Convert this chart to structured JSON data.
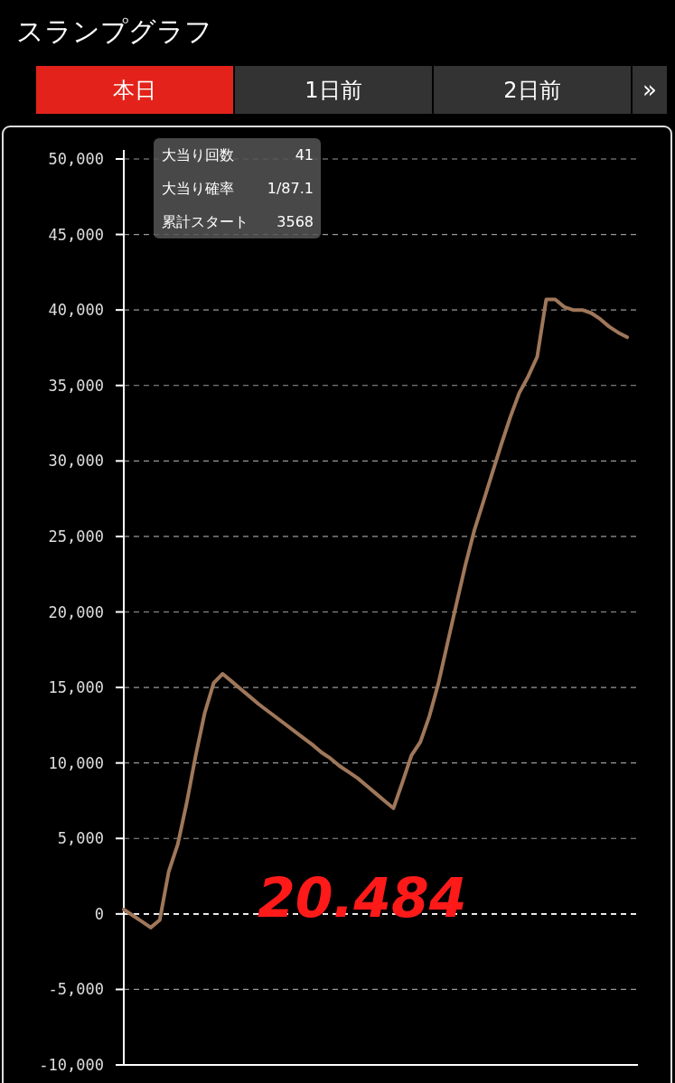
{
  "chart_data": {
    "type": "line",
    "title": "スランプグラフ",
    "categories": [
      null,
      null,
      null,
      null,
      null,
      null,
      null,
      null,
      null,
      null,
      null,
      null,
      null,
      null,
      null,
      null,
      null,
      null,
      null,
      null,
      null,
      null,
      null,
      null,
      null,
      null,
      null,
      null,
      null,
      null,
      null,
      null,
      null,
      null,
      null,
      null,
      null,
      null,
      null,
      null,
      null,
      null,
      null,
      null,
      null,
      null,
      null,
      null,
      null,
      null,
      null,
      null,
      null,
      null,
      null,
      null,
      null
    ],
    "series": [
      {
        "color": "#a0775a",
        "values": [
          300,
          -100,
          -500,
          -900,
          -400,
          2800,
          4600,
          7350,
          10500,
          13300,
          15300,
          15900,
          15400,
          14900,
          14400,
          13900,
          13450,
          13000,
          12550,
          12100,
          11650,
          11200,
          10700,
          10300,
          9800,
          9400,
          9000,
          8500,
          8000,
          7500,
          7000,
          8700,
          10500,
          11400,
          13100,
          15250,
          17900,
          20500,
          23100,
          25400,
          27300,
          29200,
          31100,
          32900,
          34500,
          35600,
          36900,
          40700,
          40700,
          40200,
          40000,
          40000,
          39800,
          39400,
          38900,
          38500,
          38200
        ]
      }
    ],
    "ylim": [
      -10000,
      50000
    ],
    "yticks": [
      {
        "value": -10000,
        "label": "-10,000"
      },
      {
        "value": -5000,
        "label": "-5,000"
      },
      {
        "value": 0,
        "label": "0"
      },
      {
        "value": 5000,
        "label": "5,000"
      },
      {
        "value": 10000,
        "label": "10,000"
      },
      {
        "value": 15000,
        "label": "15,000"
      },
      {
        "value": 20000,
        "label": "20,000"
      },
      {
        "value": 25000,
        "label": "25,000"
      },
      {
        "value": 30000,
        "label": "30,000"
      },
      {
        "value": 35000,
        "label": "35,000"
      },
      {
        "value": 40000,
        "label": "40,000"
      },
      {
        "value": 45000,
        "label": "45,000"
      },
      {
        "value": 50000,
        "label": "50,000"
      }
    ],
    "grid": "y",
    "ref_lines": [
      {
        "axis": "y",
        "value": 0,
        "color": "#ffffff",
        "line_style": "dashed"
      }
    ],
    "annotations": [
      "本日",
      "1日前",
      "2日前",
      "»",
      "大当り回数",
      "41",
      "大当り確率",
      "1/87.1",
      "累計スタート",
      "3568",
      "20.484"
    ]
  }
}
